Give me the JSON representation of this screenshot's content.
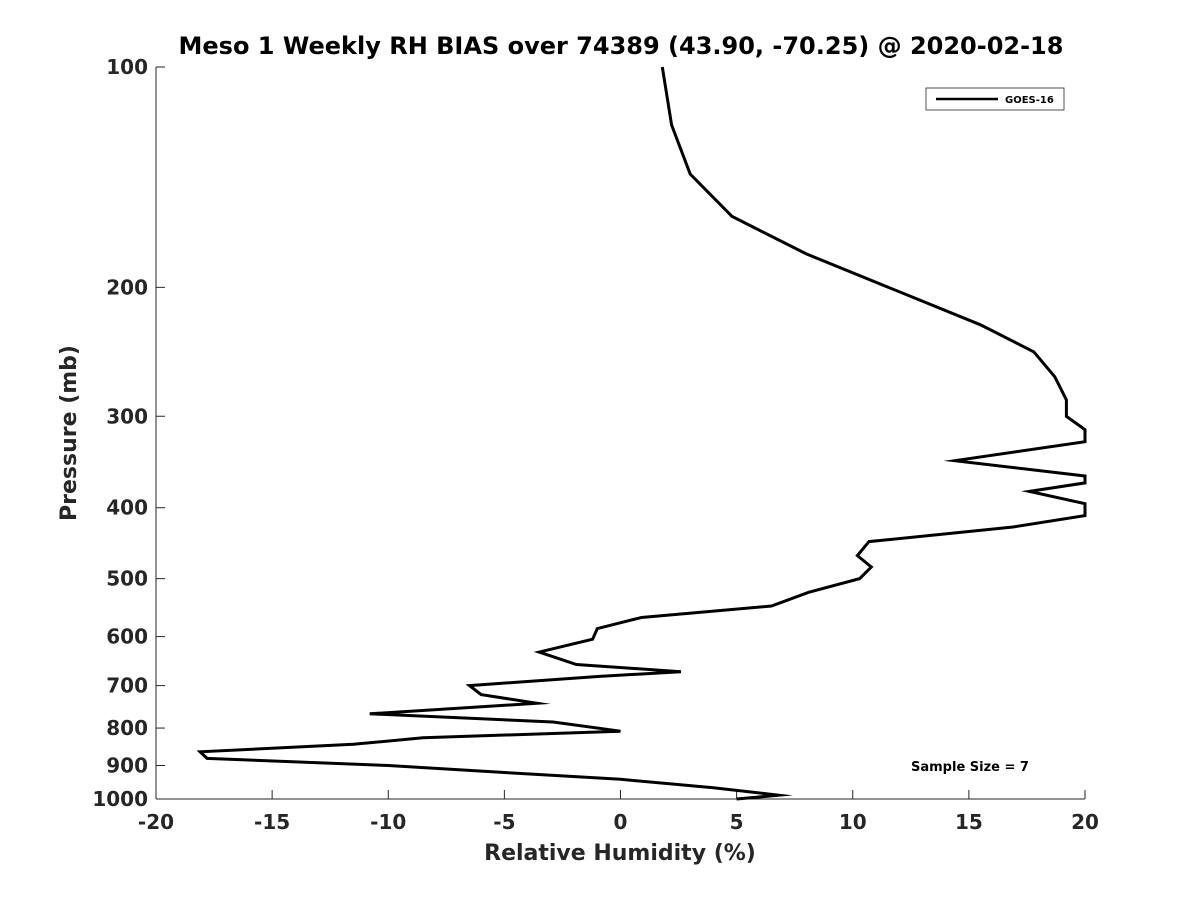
{
  "chart_data": {
    "type": "line",
    "title": "Meso 1 Weekly RH BIAS over 74389 (43.90, -70.25) @ 2020-02-18",
    "xlabel": "Relative Humidity (%)",
    "ylabel": "Pressure (mb)",
    "xlim": [
      -20,
      20
    ],
    "ylim": [
      100,
      1000
    ],
    "y_scale": "log",
    "y_reversed": true,
    "x_ticks": [
      -20,
      -15,
      -10,
      -5,
      0,
      5,
      10,
      15,
      20
    ],
    "y_ticks": [
      100,
      200,
      300,
      400,
      500,
      600,
      700,
      800,
      900,
      1000
    ],
    "grid": false,
    "legend_position": "top-right",
    "series": [
      {
        "name": "GOES-16",
        "color": "#000000",
        "points": [
          {
            "x": 1.8,
            "y": 100
          },
          {
            "x": 2.2,
            "y": 120
          },
          {
            "x": 3.0,
            "y": 140
          },
          {
            "x": 4.8,
            "y": 160
          },
          {
            "x": 8.0,
            "y": 180
          },
          {
            "x": 15.5,
            "y": 225
          },
          {
            "x": 17.8,
            "y": 245
          },
          {
            "x": 18.7,
            "y": 265
          },
          {
            "x": 19.2,
            "y": 285
          },
          {
            "x": 19.2,
            "y": 300
          },
          {
            "x": 20.0,
            "y": 313
          },
          {
            "x": 20.0,
            "y": 325
          },
          {
            "x": 14.4,
            "y": 345
          },
          {
            "x": 20.0,
            "y": 362
          },
          {
            "x": 20.0,
            "y": 370
          },
          {
            "x": 17.6,
            "y": 380
          },
          {
            "x": 20.0,
            "y": 395
          },
          {
            "x": 20.0,
            "y": 410
          },
          {
            "x": 16.9,
            "y": 425
          },
          {
            "x": 10.7,
            "y": 445
          },
          {
            "x": 10.2,
            "y": 465
          },
          {
            "x": 10.8,
            "y": 482
          },
          {
            "x": 10.3,
            "y": 500
          },
          {
            "x": 8.1,
            "y": 522
          },
          {
            "x": 6.5,
            "y": 545
          },
          {
            "x": 0.9,
            "y": 565
          },
          {
            "x": -1.0,
            "y": 585
          },
          {
            "x": -1.2,
            "y": 605
          },
          {
            "x": -3.5,
            "y": 630
          },
          {
            "x": -1.9,
            "y": 655
          },
          {
            "x": 2.6,
            "y": 670
          },
          {
            "x": -0.9,
            "y": 680
          },
          {
            "x": -6.5,
            "y": 700
          },
          {
            "x": -6.0,
            "y": 720
          },
          {
            "x": -3.6,
            "y": 740
          },
          {
            "x": -10.8,
            "y": 765
          },
          {
            "x": -2.9,
            "y": 785
          },
          {
            "x": 0.0,
            "y": 808
          },
          {
            "x": -8.5,
            "y": 825
          },
          {
            "x": -11.5,
            "y": 842
          },
          {
            "x": -18.1,
            "y": 862
          },
          {
            "x": -17.8,
            "y": 880
          },
          {
            "x": -10.0,
            "y": 900
          },
          {
            "x": -5.0,
            "y": 920
          },
          {
            "x": 0.0,
            "y": 940
          },
          {
            "x": 4.0,
            "y": 965
          },
          {
            "x": 6.8,
            "y": 988
          },
          {
            "x": 5.0,
            "y": 1000
          }
        ]
      }
    ],
    "annotations": [
      "Sample Size = 7"
    ]
  }
}
